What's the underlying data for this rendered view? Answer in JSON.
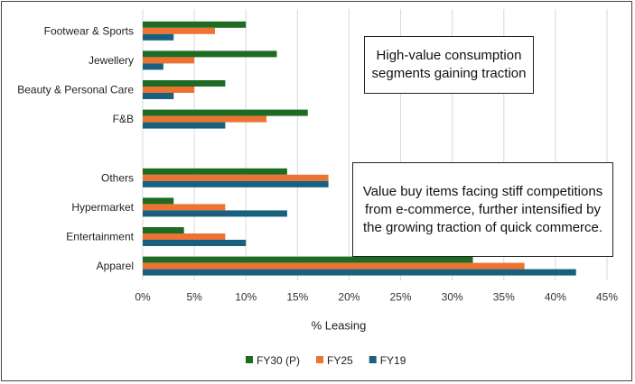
{
  "chart_data": {
    "type": "bar",
    "orientation": "horizontal",
    "title": "",
    "xlabel": "% Leasing",
    "ylabel": "",
    "xlim": [
      0,
      45
    ],
    "x_ticks": [
      "0%",
      "5%",
      "10%",
      "15%",
      "20%",
      "25%",
      "30%",
      "35%",
      "40%",
      "45%"
    ],
    "grid": true,
    "legend_position": "bottom",
    "categories": [
      "Footwear & Sports",
      "Jewellery",
      "Beauty & Personal Care",
      "F&B",
      "",
      "Others",
      "Hypermarket",
      "Entertainment",
      "Apparel"
    ],
    "series": [
      {
        "name": "FY30 (P)",
        "color": "#1e6b24",
        "values": [
          10,
          13,
          8,
          16,
          null,
          14,
          3,
          4,
          32
        ]
      },
      {
        "name": "FY25",
        "color": "#ec7331",
        "values": [
          7,
          5,
          5,
          12,
          null,
          18,
          8,
          8,
          37
        ]
      },
      {
        "name": "FY19",
        "color": "#19607f",
        "values": [
          3,
          2,
          3,
          8,
          null,
          18,
          14,
          10,
          42
        ]
      }
    ],
    "annotations": [
      "High-value consumption segments gaining traction",
      "Value buy items facing stiff competitions from e-commerce, further intensified by the growing traction of quick commerce."
    ]
  }
}
